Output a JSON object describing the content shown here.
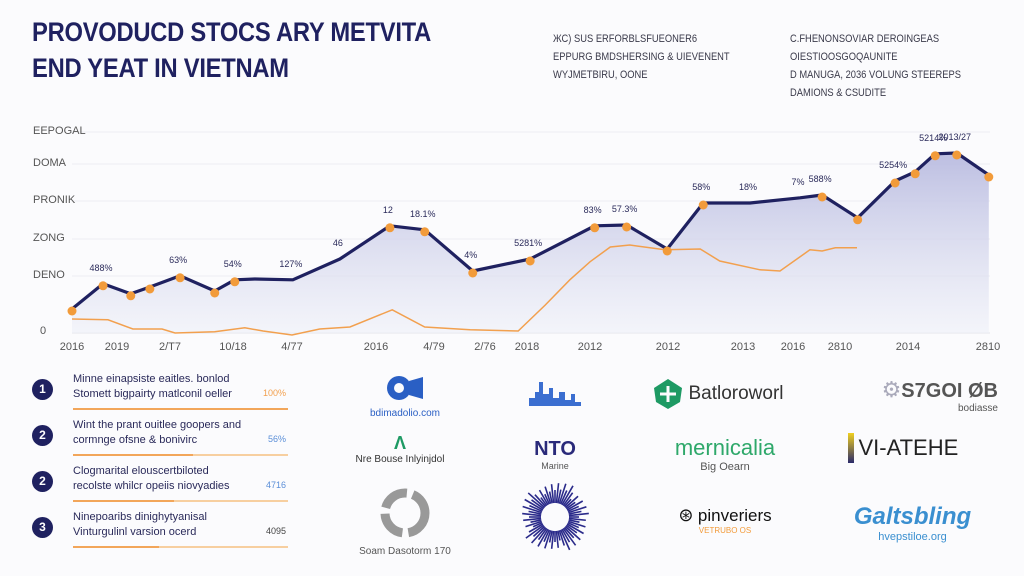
{
  "header": {
    "title_line1": "PROVODUCD STOCS ARY METVITA",
    "title_line2": "END YEAT IN VIETNAM",
    "notes_col1": [
      "ЖС) SUS ERFORBLSFUEONER6",
      "EPPURG BMDSHERSING & UIEVENENT",
      "WYJMETBIRU, OONE"
    ],
    "notes_col2": [
      "C.FHENONSOVIAR DEROINGEAS",
      "OIESTIOOSGOQAUNITE",
      "D MANUGA, 2036 VOLUNG STEEREPS",
      "DAMIONS & CSUDITE"
    ]
  },
  "chart_data": {
    "type": "area",
    "title": "",
    "xlabel": "",
    "ylabel": "",
    "y_tick_labels": [
      "0",
      "DENO",
      "ZONG",
      "PRONIK",
      "DOMA",
      "EEPOGAL"
    ],
    "x_tick_labels": [
      "2016",
      "2019",
      "2/T7",
      "10/18",
      "4/77",
      "2016",
      "4/79",
      "2/76",
      "2018",
      "2012",
      "2012",
      "2013",
      "2016",
      "2810",
      "2014",
      "2810"
    ],
    "grid": true,
    "colors": {
      "primary": "#1f2160",
      "secondary": "#f2a04e",
      "fill": "#b9bbe0",
      "marker": "#f29b3a"
    },
    "series": [
      {
        "x": [
          0,
          0.69,
          1.26,
          1.62,
          2.16,
          2.71,
          3.03,
          3.37,
          4.01,
          4.57,
          5.24,
          5.84,
          6.76,
          8.05,
          8.52,
          9.06,
          9.47,
          9.99,
          10.47,
          11.14,
          12.15,
          12.62,
          13.26,
          13.81,
          14.09,
          14.34,
          14.61,
          15.01
        ],
        "y": [
          0.65,
          1.28,
          1.03,
          1.2,
          1.48,
          1.1,
          1.38,
          1.4,
          1.38,
          1.9,
          2.73,
          2.63,
          1.6,
          1.9,
          2.28,
          2.73,
          2.75,
          2.15,
          3.3,
          3.3,
          3.43,
          3.5,
          2.93,
          3.85,
          4.08,
          4.53,
          4.55,
          4.0
        ],
        "markers": [
          0,
          1,
          2,
          3,
          4,
          5,
          6,
          10,
          11,
          12,
          13,
          15,
          16,
          17,
          18,
          21,
          22,
          23,
          24,
          25,
          26,
          27
        ],
        "labels": [
          {
            "i": 1,
            "text": "488%"
          },
          {
            "i": 4,
            "text": "63%"
          },
          {
            "i": 6,
            "text": "54%"
          },
          {
            "i": 8,
            "text": "127%"
          },
          {
            "i": 9,
            "text": "46"
          },
          {
            "i": 10,
            "text": "12"
          },
          {
            "i": 11,
            "text": "18.1%"
          },
          {
            "i": 12,
            "text": "4%"
          },
          {
            "i": 13,
            "text": "5281%"
          },
          {
            "i": 15,
            "text": "83%"
          },
          {
            "i": 16,
            "text": "57.3%"
          },
          {
            "i": 18,
            "text": "58%"
          },
          {
            "i": 19,
            "text": "18%"
          },
          {
            "i": 20,
            "text": "7%"
          },
          {
            "i": 21,
            "text": "588%"
          },
          {
            "i": 23,
            "text": "5254%"
          },
          {
            "i": 25,
            "text": "5214%"
          },
          {
            "i": 26,
            "text": "2013/27"
          }
        ]
      },
      {
        "x": [
          0,
          0.8,
          1.3,
          1.85,
          2.08,
          2.71,
          3.2,
          3.51,
          4,
          4.33,
          4.69,
          5.28,
          5.84,
          6.71,
          7.79,
          8.29,
          8.68,
          9,
          9.26,
          9.51,
          9.96,
          10.43,
          10.69,
          11.34,
          11.74,
          12.36,
          12.62,
          12.9,
          13.25
        ],
        "y": [
          0.4,
          0.38,
          0.15,
          0.15,
          0.05,
          0.08,
          0.18,
          0.1,
          0,
          0.15,
          0.2,
          0.63,
          0.2,
          0.13,
          0.1,
          0.75,
          1.38,
          1.83,
          2.2,
          2.25,
          2.13,
          2.15,
          1.85,
          1.63,
          1.6,
          2.13,
          2.1,
          2.18,
          2.18
        ]
      }
    ]
  },
  "list": {
    "items": [
      {
        "num": "1",
        "line1": "Minne einapsiste eaitles. bonlod",
        "line2": "Stomett bigpairty matlconil oeller",
        "value": "100%",
        "value_color": "#f2a04e",
        "progress": 1.0
      },
      {
        "num": "2",
        "line1": "Wint the prant ouitlee goopers and",
        "line2": "cormnge ofsne & bonivirc",
        "value": "56%",
        "value_color": "#5b8fd8",
        "progress": 0.56
      },
      {
        "num": "2",
        "line1": "Clogmarital elouscertbiloted",
        "line2": "recolste whilcr opeiis niovyadies",
        "value": "4716",
        "value_color": "#5b8fd8",
        "progress": 0.47
      },
      {
        "num": "3",
        "line1": "Ninepoaribs dinighytyanisal",
        "line2": "Vinturgulinl varsion ocerd",
        "value": "4095",
        "value_color": "#444444",
        "progress": 0.4
      }
    ]
  },
  "logos": [
    {
      "name": "blue-camera-logo",
      "sub": "bdimadolio.com"
    },
    {
      "name": "city-skyline-logo"
    },
    {
      "name": "green-shield-logo",
      "text": "Batloroworl"
    },
    {
      "name": "gear-logo",
      "text": "S7GOI ØB",
      "sub": "bodiasse"
    },
    {
      "name": "green-a-logo",
      "sub": "Nre Bouse Inlyinjdol"
    },
    {
      "name": "nto-logo",
      "text": "NTO",
      "sub": "Marine"
    },
    {
      "name": "mernicalia-logo",
      "text": "mernicalia",
      "sub": "Big Oearn"
    },
    {
      "name": "viatehe-logo",
      "text": "VI-ATEHE"
    },
    {
      "name": "recycle-logo",
      "sub": "Soam Dasotorm 170"
    },
    {
      "name": "starburst-logo"
    },
    {
      "name": "pinveriers-logo",
      "text": "pinveriers",
      "sub": "VETRUBO OS"
    },
    {
      "name": "galtsbling-logo",
      "text": "Galtsbling",
      "sub": "hvepstiloe.org"
    }
  ]
}
